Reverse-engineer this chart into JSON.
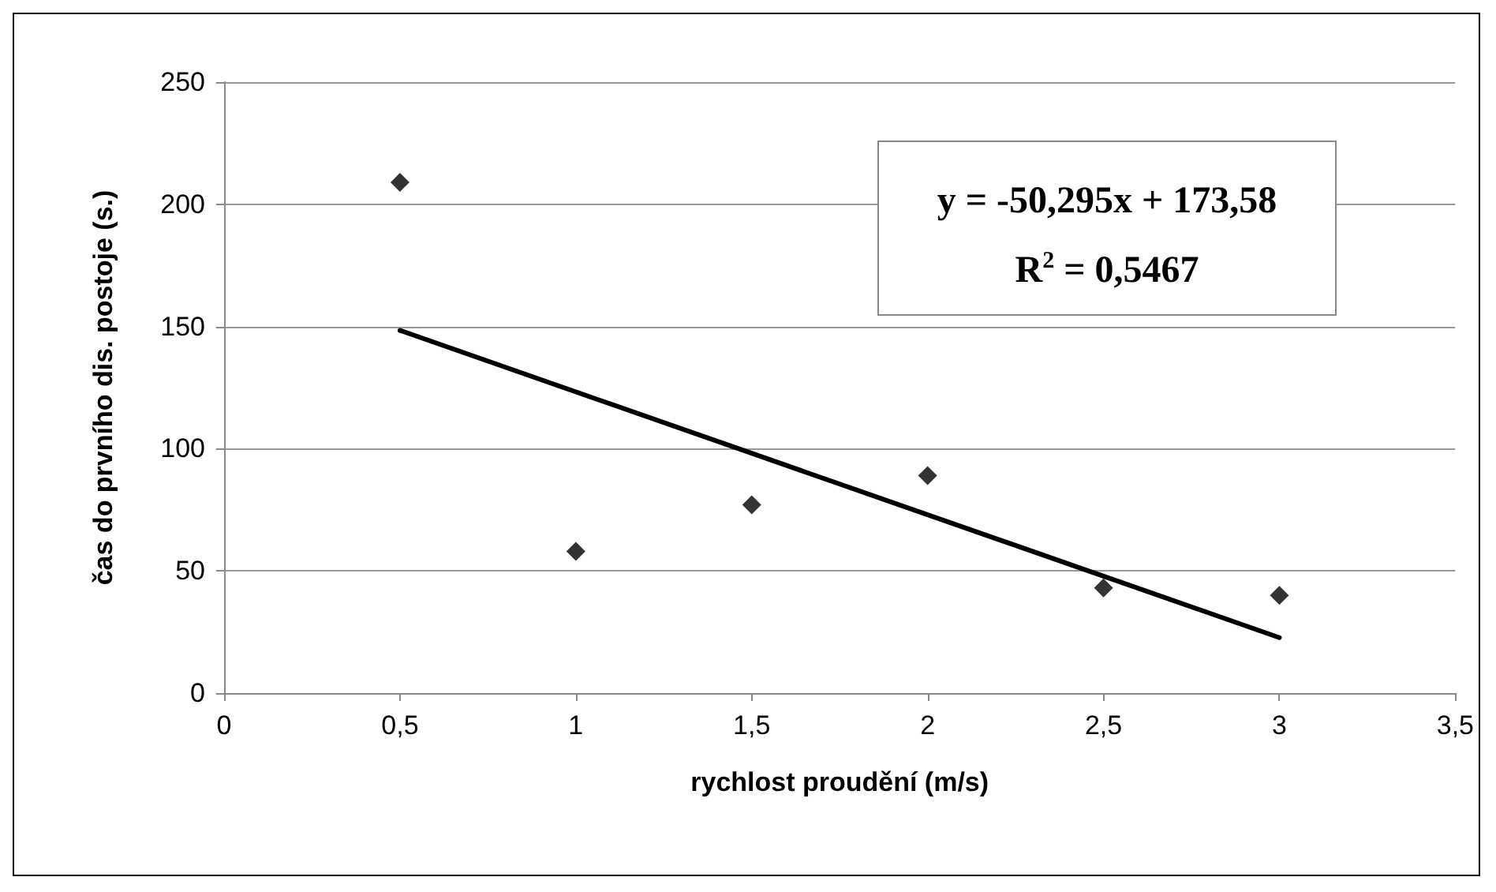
{
  "chart_data": {
    "type": "scatter",
    "xlabel": "rychlost proudění (m/s)",
    "ylabel": "čas do prvního dis. postoje (s.)",
    "x": [
      0.5,
      1,
      1.5,
      2,
      2.5,
      3
    ],
    "series": [
      {
        "color": "#000000",
        "marker": "diamond",
        "values": [
          209,
          58,
          77,
          89,
          43,
          40
        ]
      },
      {
        "type": "line",
        "color": "#000000",
        "x": [
          0.5,
          3
        ],
        "values": [
          148.4,
          22.7
        ],
        "line_style": "solid",
        "marker": "none"
      }
    ],
    "xlim": [
      0,
      3.5
    ],
    "xticks": [
      0,
      {
        "value": 0.5,
        "label": "0,5"
      },
      1,
      {
        "value": 1.5,
        "label": "1,5"
      },
      2,
      {
        "value": 2.5,
        "label": "2,5"
      },
      3,
      {
        "value": 3.5,
        "label": "3,5"
      }
    ],
    "ylim": [
      0,
      250
    ],
    "yticks": [
      0,
      50,
      100,
      150,
      200,
      250
    ],
    "grid": "y",
    "annotations": [
      "y = -50,295x + 173,58",
      "R$^{2}$ = 0,5467"
    ]
  }
}
